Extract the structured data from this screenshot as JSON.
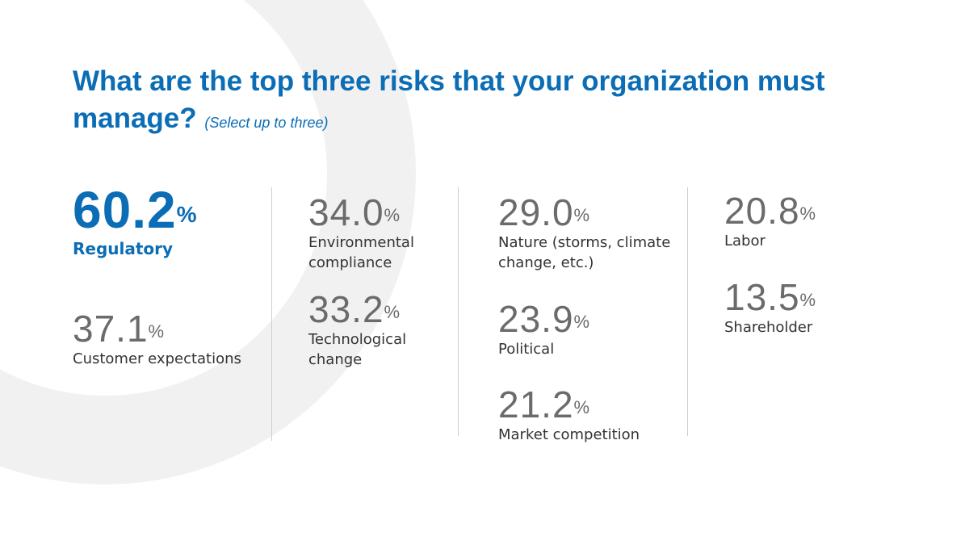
{
  "header": {
    "title": "What are the top three risks that your organization must manage?",
    "subtitle": "(Select up to three)"
  },
  "stats": [
    {
      "value": "60.2",
      "unit": "%",
      "label": "Regulatory"
    },
    {
      "value": "37.1",
      "unit": "%",
      "label": "Customer expectations"
    },
    {
      "value": "34.0",
      "unit": "%",
      "label": "Environmental compliance"
    },
    {
      "value": "33.2",
      "unit": "%",
      "label": "Technological change"
    },
    {
      "value": "29.0",
      "unit": "%",
      "label": "Nature (storms, climate change, etc.)"
    },
    {
      "value": "23.9",
      "unit": "%",
      "label": "Political"
    },
    {
      "value": "21.2",
      "unit": "%",
      "label": "Market competition"
    },
    {
      "value": "20.8",
      "unit": "%",
      "label": "Labor"
    },
    {
      "value": "13.5",
      "unit": "%",
      "label": "Shareholder"
    }
  ]
}
